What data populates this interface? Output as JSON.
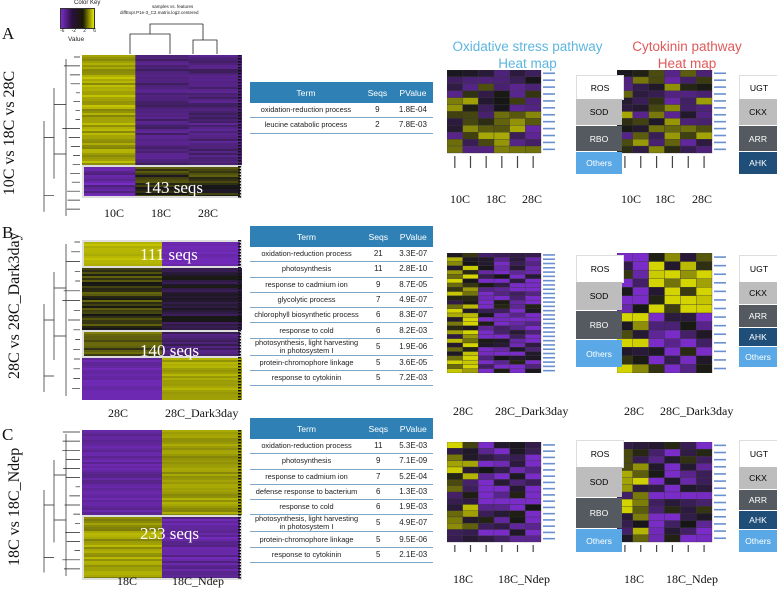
{
  "color_key": {
    "title": "Color Key",
    "ticks": [
      "-6",
      "-2",
      "2",
      "6"
    ],
    "label": "Value",
    "caption_line1": "samples vs. features",
    "caption_line2": "diffExpr.P1e-3_C2.matrix.log2.centered"
  },
  "pathway_headers": {
    "oxidative": {
      "line1": "Oxidative stress pathway",
      "line2": "Heat map",
      "color": "#5db6df"
    },
    "cytokinin": {
      "line1": "Cytokinin pathway",
      "line2": "Heat map",
      "color": "#e05a5a"
    }
  },
  "categories": {
    "oxidative": [
      {
        "label": "ROS",
        "bg": "#ffffff",
        "fg": "#111111"
      },
      {
        "label": "SOD",
        "bg": "#bdbdbd",
        "fg": "#111111"
      },
      {
        "label": "RBO",
        "bg": "#555a60",
        "fg": "#ffffff"
      },
      {
        "label": "Others",
        "bg": "#5aa9e6",
        "fg": "#ffffff"
      }
    ],
    "cytokinin": [
      {
        "label": "UGT",
        "bg": "#ffffff",
        "fg": "#111111"
      },
      {
        "label": "CKX",
        "bg": "#bdbdbd",
        "fg": "#111111"
      },
      {
        "label": "ARR",
        "bg": "#555a60",
        "fg": "#ffffff"
      },
      {
        "label": "AHK",
        "bg": "#1f4e79",
        "fg": "#ffffff"
      }
    ]
  },
  "panels": [
    {
      "letter": "A",
      "comparison": "10C vs 18C vs 28C",
      "x_labels": [
        "10C",
        "18C",
        "28C"
      ],
      "cluster_labels": [
        "143 seqs"
      ],
      "table_header": {
        "term": "Term",
        "seqs": "Seqs",
        "pvalue": "PValue"
      },
      "go_terms": [
        {
          "term": "oxidation-reduction process",
          "seqs": "9",
          "pvalue": "1.8E-04"
        },
        {
          "term": "leucine catabolic process",
          "seqs": "2",
          "pvalue": "7.8E-03"
        }
      ],
      "small_x_labels": [
        "10C",
        "18C",
        "28C"
      ],
      "others_label": "",
      "cyto_others_label": ""
    },
    {
      "letter": "B",
      "comparison": "28C vs 28C_Dark3day",
      "x_labels": [
        "28C",
        "28C_Dark3day"
      ],
      "cluster_labels": [
        "111 seqs",
        "140 seqs"
      ],
      "table_header": {
        "term": "Term",
        "seqs": "Seqs",
        "pvalue": "PValue"
      },
      "go_terms": [
        {
          "term": "oxidation-reduction process",
          "seqs": "21",
          "pvalue": "3.3E-07"
        },
        {
          "term": "photosynthesis",
          "seqs": "11",
          "pvalue": "2.8E-10"
        },
        {
          "term": "response to cadmium ion",
          "seqs": "9",
          "pvalue": "8.7E-05"
        },
        {
          "term": "glycolytic process",
          "seqs": "7",
          "pvalue": "4.9E-07"
        },
        {
          "term": "chlorophyll biosynthetic process",
          "seqs": "6",
          "pvalue": "8.3E-07"
        },
        {
          "term": "response to cold",
          "seqs": "6",
          "pvalue": "8.2E-03"
        },
        {
          "term": "photosynthesis, light harvesting in photosystem I",
          "seqs": "5",
          "pvalue": "1.9E-06"
        },
        {
          "term": "protein-chromophore linkage",
          "seqs": "5",
          "pvalue": "3.6E-05"
        },
        {
          "term": "response to cytokinin",
          "seqs": "5",
          "pvalue": "7.2E-03"
        }
      ],
      "small_x_labels": [
        "28C",
        "28C_Dark3day"
      ],
      "cyto_others_label": "Others"
    },
    {
      "letter": "C",
      "comparison": "18C vs 18C_Ndep",
      "x_labels": [
        "18C",
        "18C_Ndep"
      ],
      "cluster_labels": [
        "233 seqs"
      ],
      "table_header": {
        "term": "Term",
        "seqs": "Seqs",
        "pvalue": "PValue"
      },
      "go_terms": [
        {
          "term": "oxidation-reduction process",
          "seqs": "11",
          "pvalue": "5.3E-03"
        },
        {
          "term": "photosynthesis",
          "seqs": "9",
          "pvalue": "7.1E-09"
        },
        {
          "term": "response to cadmium ion",
          "seqs": "7",
          "pvalue": "5.2E-04"
        },
        {
          "term": "defense response to bacterium",
          "seqs": "6",
          "pvalue": "1.3E-03"
        },
        {
          "term": "response to cold",
          "seqs": "6",
          "pvalue": "1.9E-03"
        },
        {
          "term": "photosynthesis, light harvesting in photosystem I",
          "seqs": "5",
          "pvalue": "4.9E-07"
        },
        {
          "term": "protein-chromophore linkage",
          "seqs": "5",
          "pvalue": "9.5E-06"
        },
        {
          "term": "response to cytokinin",
          "seqs": "5",
          "pvalue": "2.1E-03"
        }
      ],
      "small_x_labels": [
        "18C",
        "18C_Ndep"
      ],
      "cyto_others_label": "Others"
    }
  ],
  "others_label": "Others",
  "colors": {
    "yellow": "#c8c800",
    "purple": "#7a2cc8",
    "black": "#111111",
    "table_header": "#2f81b5"
  }
}
